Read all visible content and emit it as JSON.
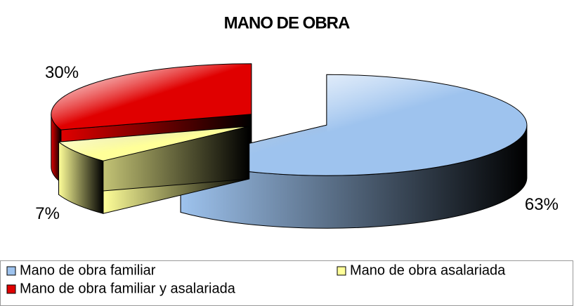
{
  "chart_data": {
    "type": "pie3d",
    "title": "MANO DE OBRA",
    "categories": [
      "Mano de obra familiar",
      "Mano de obra asalariada",
      "Mano de obra familiar y asalariada"
    ],
    "values": [
      63,
      7,
      30
    ],
    "value_labels": [
      "63%",
      "7%",
      "30%"
    ],
    "colors": [
      "#9ec3ee",
      "#ffff99",
      "#e00000"
    ]
  }
}
